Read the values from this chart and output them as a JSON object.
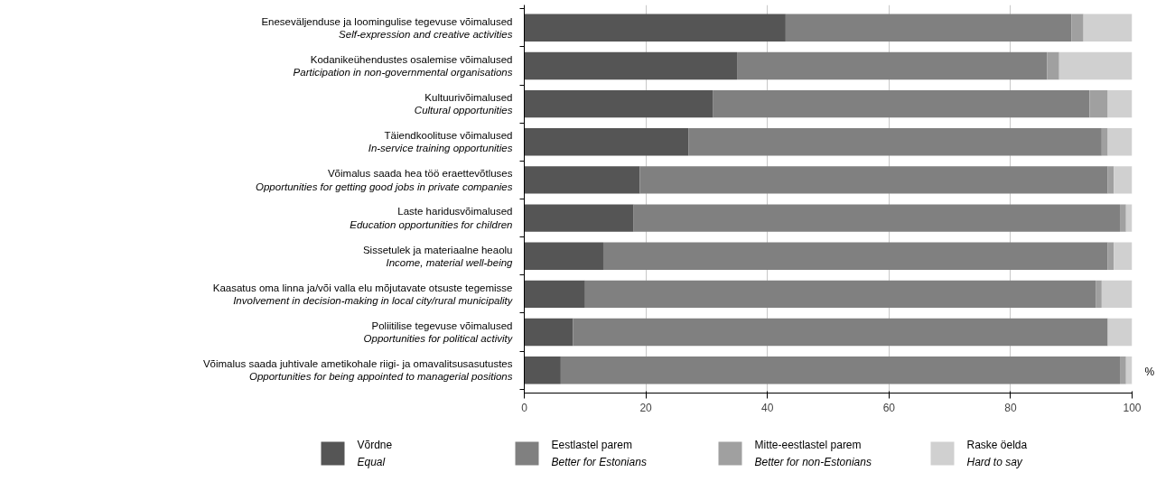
{
  "chart_data": {
    "type": "bar",
    "orientation": "horizontal",
    "stacked": true,
    "categories": [
      "Eneseväljenduse ja loomingulise tegevuse võimalused\nSelf-expression and creative activities",
      "Kodanikeühendustes osalemise võimalused\nParticipation in non-governmental organisations",
      "Kultuurivõimalused\nCultural opportunities",
      "Täiendkoolituse võimalused\nIn-service training opportunities",
      "Võimalus saada hea töö eraettevõtluses\nOpportunities for getting good jobs in private companies",
      "Laste haridusvõimalused\nEducation opportunities for children",
      "Sissetulek ja materiaalne heaolu\nIncome, material well-being",
      "Kaasatus oma linna ja/või valla elu mõjutavate otsuste tegemisse\nInvolvement in decision-making in local city/rural municipality",
      "Poliitilise tegevuse võimalused\nOpportunities for political activity",
      "Võimalus saada juhtivale ametikohale riigi- ja omavalitsusasutustes\nOpportunities for being appointed to managerial positions"
    ],
    "series": [
      {
        "name": "Võrdne\nEqual",
        "color": "#555555",
        "values": [
          43,
          35,
          31,
          27,
          19,
          18,
          13,
          10,
          8,
          6
        ]
      },
      {
        "name": "Eestlastel parem\nBetter for Estonians",
        "color": "#808080",
        "values": [
          47,
          51,
          62,
          68,
          77,
          80,
          83,
          84,
          88,
          92
        ]
      },
      {
        "name": "Mitte-eestlastel parem\nBetter for non-Estonians",
        "color": "#a0a0a0",
        "values": [
          2,
          2,
          3,
          1,
          1,
          1,
          1,
          1,
          0,
          1
        ]
      },
      {
        "name": "Raske öelda\nHard to say",
        "color": "#d0d0d0",
        "values": [
          8,
          12,
          4,
          4,
          3,
          1,
          3,
          5,
          4,
          1
        ]
      }
    ],
    "xlim": [
      0,
      100
    ],
    "xticks": [
      0,
      20,
      40,
      60,
      80,
      100
    ],
    "xlabel": "%",
    "grid": "x",
    "legend": "bottom"
  }
}
